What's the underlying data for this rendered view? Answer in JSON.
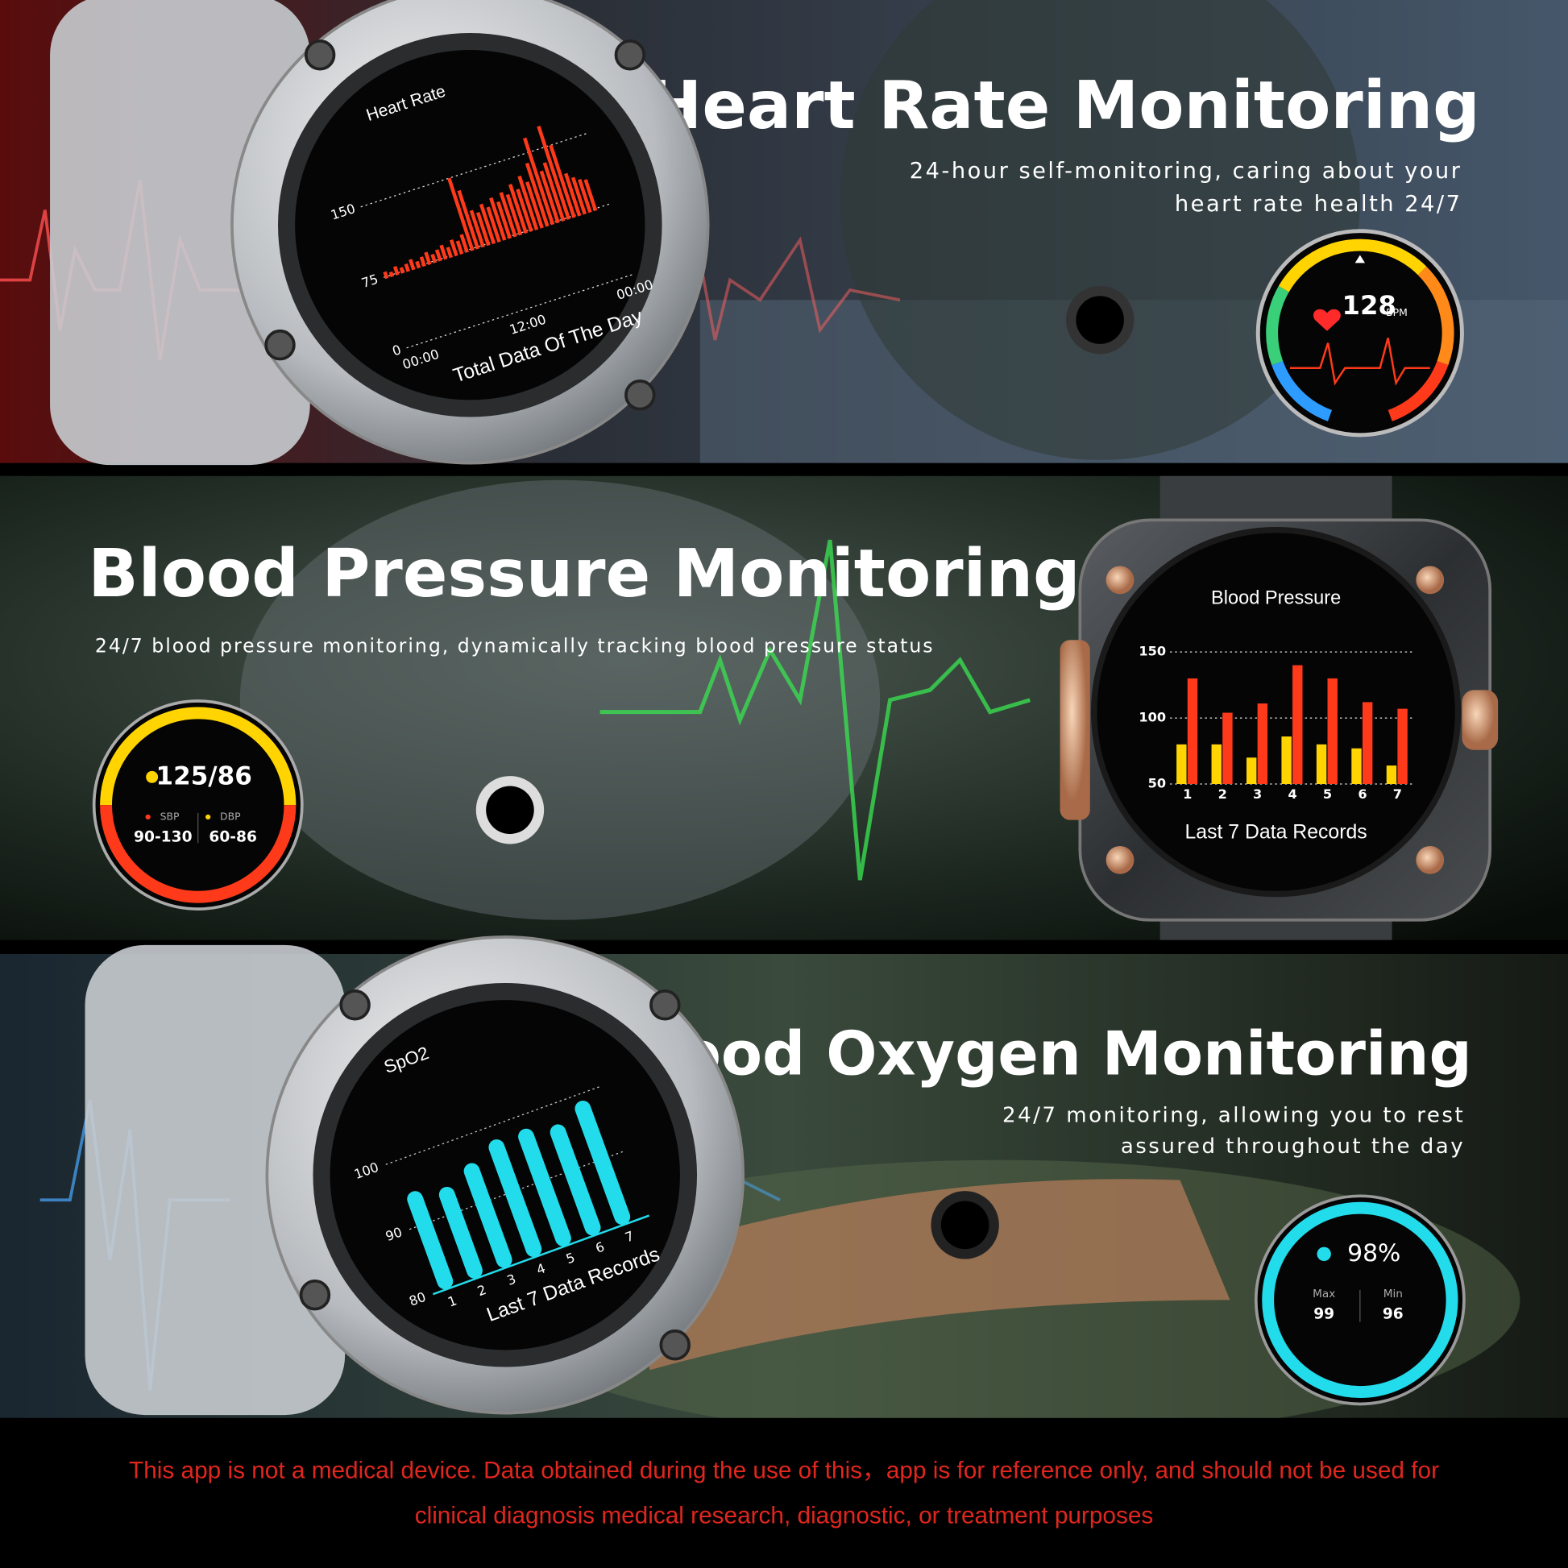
{
  "panels": [
    {
      "title": "Heart Rate Monitoring",
      "subtitle": [
        "24-hour self-monitoring, caring about your",
        "heart rate health 24/7"
      ],
      "watch_chart": {
        "type": "bar",
        "title": "Heart Rate",
        "color": "#ff3a1a",
        "values": [
          80,
          78,
          82,
          79,
          81,
          84,
          80,
          83,
          86,
          82,
          85,
          88,
          84,
          90,
          87,
          92,
          150,
          135,
          112,
          108,
          115,
          110,
          118,
          112,
          120,
          116,
          125,
          118,
          130,
          122,
          140,
          165,
          128,
          135,
          172,
          150,
          118,
          112,
          108,
          106
        ],
        "ylim": [
          0,
          180
        ],
        "yticks": [
          0,
          75,
          150
        ],
        "xtick_labels": [
          "00:00",
          "12:00",
          "00:00"
        ],
        "footer": "Total Data Of The Day"
      },
      "widget": {
        "value": 128,
        "unit": "BPM"
      }
    },
    {
      "title": "Blood Pressure Monitoring",
      "subtitle": [
        "24/7 blood pressure monitoring, dynamically tracking blood pressure status"
      ],
      "watch_chart": {
        "type": "grouped_bar",
        "title": "Blood Pressure",
        "categories": [
          "1",
          "2",
          "3",
          "4",
          "5",
          "6",
          "7"
        ],
        "series": [
          {
            "color": "#ffd400",
            "values": [
              80,
              80,
              70,
              86,
              80,
              77,
              64
            ]
          },
          {
            "color": "#ff3a1a",
            "values": [
              130,
              104,
              111,
              140,
              130,
              112,
              107
            ]
          }
        ],
        "ylim": [
          50,
          150
        ],
        "yticks": [
          50,
          100,
          150
        ],
        "footer": "Last 7 Data Records"
      },
      "widget": {
        "reading": "125/86",
        "labels": [
          "SBP",
          "DBP"
        ],
        "ranges": [
          "90-130",
          "60-86"
        ]
      }
    },
    {
      "title": "Blood Oxygen Monitoring",
      "subtitle": [
        "24/7 monitoring, allowing you to rest",
        "assured throughout the day"
      ],
      "watch_chart": {
        "type": "bar",
        "title": "SpO2",
        "color": "#22dcec",
        "categories": [
          "1",
          "2",
          "3",
          "4",
          "5",
          "6",
          "7"
        ],
        "values": [
          95,
          94,
          96,
          98,
          98,
          97,
          99
        ],
        "ylim": [
          80,
          100
        ],
        "yticks": [
          80,
          90,
          100
        ],
        "footer": "Last 7 Data Records"
      },
      "widget": {
        "reading": "98%",
        "labels": [
          "Max",
          "Min"
        ],
        "values": [
          99,
          96
        ]
      }
    }
  ],
  "disclaimer": [
    "This app is not a medical device. Data obtained during the use of this，app is for reference only, and should not be used for",
    "clinical diagnosis medical research, diagnostic, or treatment purposes"
  ]
}
